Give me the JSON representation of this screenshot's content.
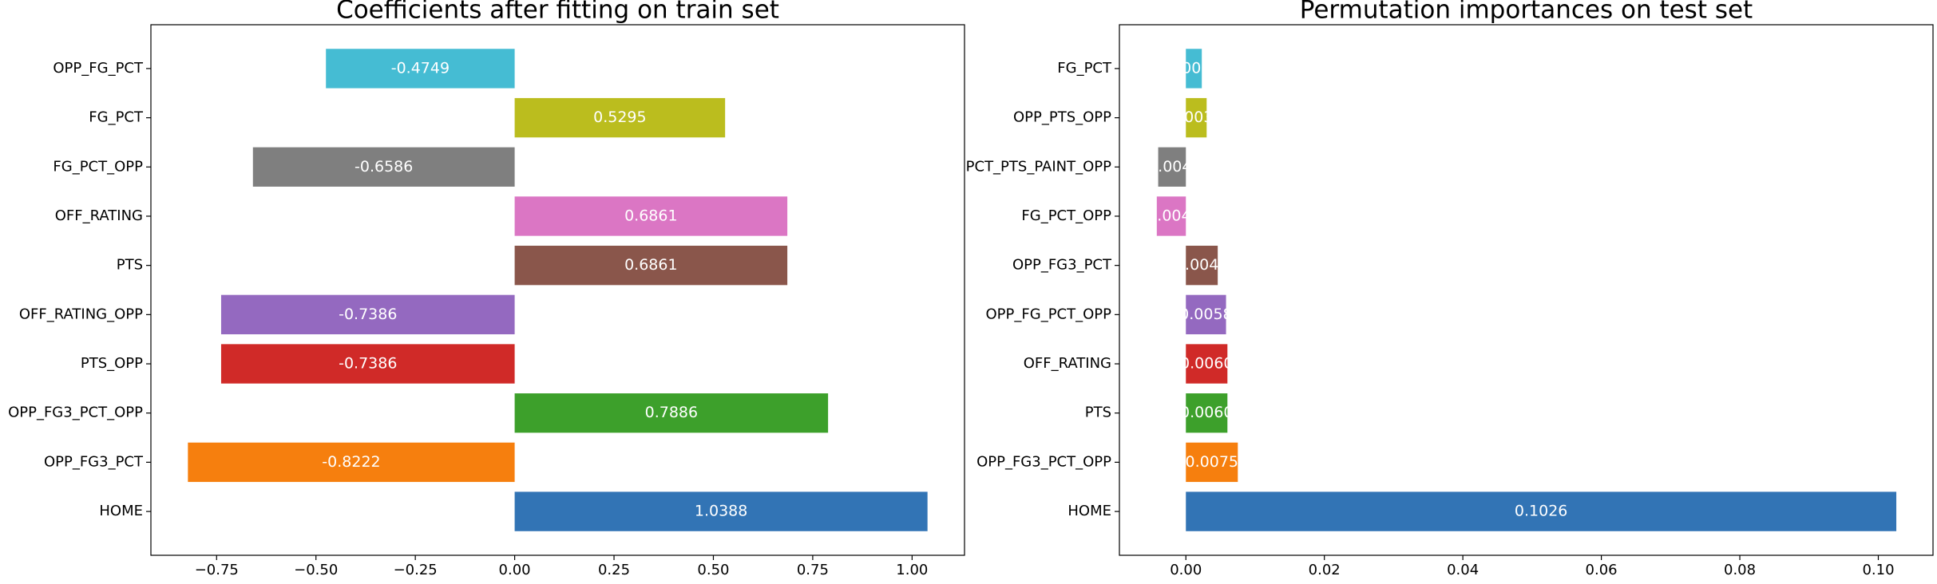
{
  "chart_data": [
    {
      "type": "barh",
      "title": "Coefficients after fitting on train set",
      "categories": [
        "HOME",
        "OPP_FG3_PCT",
        "OPP_FG3_PCT_OPP",
        "PTS_OPP",
        "OFF_RATING_OPP",
        "PTS",
        "OFF_RATING",
        "FG_PCT_OPP",
        "FG_PCT",
        "OPP_FG_PCT"
      ],
      "values": [
        1.0388,
        -0.8222,
        0.7886,
        -0.7386,
        -0.7386,
        0.6861,
        0.6861,
        -0.6586,
        0.5295,
        -0.4749
      ],
      "colors": [
        "#3274b5",
        "#f67f0e",
        "#3da02b",
        "#d02a28",
        "#9469c0",
        "#8a564b",
        "#db76c4",
        "#7f7f7f",
        "#bbbd1e",
        "#45bcd3"
      ],
      "xlim": [
        -0.9153,
        1.1319
      ],
      "xticks": [
        {
          "value": -0.75,
          "label": "−0.75"
        },
        {
          "value": -0.5,
          "label": "−0.50"
        },
        {
          "value": -0.25,
          "label": "−0.25"
        },
        {
          "value": 0,
          "label": "0.00"
        },
        {
          "value": 0.25,
          "label": "0.25"
        },
        {
          "value": 0.5,
          "label": "0.50"
        },
        {
          "value": 0.75,
          "label": "0.75"
        },
        {
          "value": 1.0,
          "label": "1.00"
        }
      ]
    },
    {
      "type": "barh",
      "title": "Permutation importances on test set",
      "categories": [
        "HOME",
        "OPP_FG3_PCT_OPP",
        "PTS",
        "OFF_RATING",
        "OPP_FG_PCT_OPP",
        "OPP_FG3_PCT",
        "FG_PCT_OPP",
        "PCT_PTS_PAINT_OPP",
        "OPP_PTS_OPP",
        "FG_PCT"
      ],
      "values": [
        0.1026,
        0.0075,
        0.006,
        0.006,
        0.0058,
        0.0046,
        -0.0042,
        -0.004,
        0.003,
        0.0023
      ],
      "value_labels": [
        "0.1026",
        "0.0075",
        "0.0060",
        "0.0060",
        "0.0058",
        "0.0046",
        "-0.0042",
        "-0.0040",
        "0.0030",
        "0.0023"
      ],
      "colors": [
        "#3274b5",
        "#f67f0e",
        "#3da02b",
        "#d02a28",
        "#9469c0",
        "#8a564b",
        "#db76c4",
        "#7f7f7f",
        "#bbbd1e",
        "#45bcd3"
      ],
      "xlim": [
        -0.0096,
        0.1079
      ],
      "xticks": [
        {
          "value": 0,
          "label": "0.00"
        },
        {
          "value": 0.02,
          "label": "0.02"
        },
        {
          "value": 0.04,
          "label": "0.04"
        },
        {
          "value": 0.06,
          "label": "0.06"
        },
        {
          "value": 0.08,
          "label": "0.08"
        },
        {
          "value": 0.1,
          "label": "0.10"
        }
      ]
    }
  ]
}
